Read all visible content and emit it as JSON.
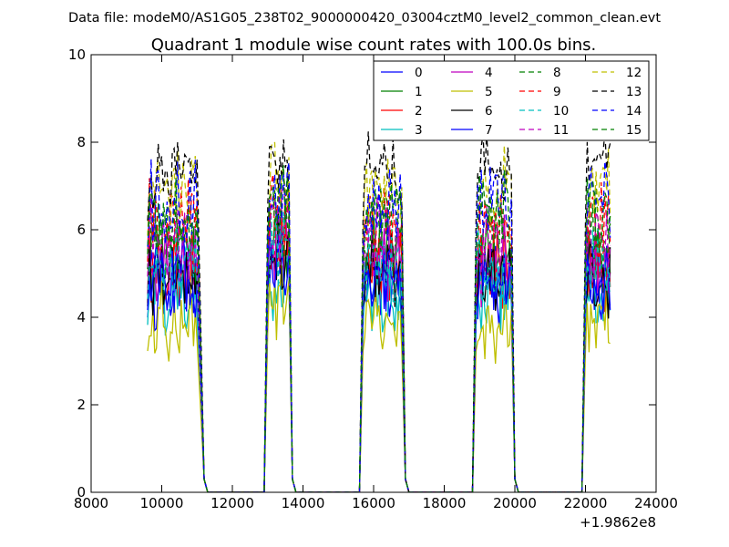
{
  "chart_data": {
    "type": "line",
    "header": "Data file: modeM0/AS1G05_238T02_9000000420_03004cztM0_level2_common_clean.evt",
    "title": "Quadrant 1 module wise count rates with 100.0s bins.",
    "xlabel": "",
    "ylabel": "",
    "offset_label": "+1.9862e8",
    "xlim": [
      8000,
      24000
    ],
    "ylim": [
      0,
      10
    ],
    "xticks": [
      "8000",
      "10000",
      "12000",
      "14000",
      "16000",
      "18000",
      "20000",
      "22000",
      "24000"
    ],
    "yticks": [
      "0",
      "2",
      "4",
      "6",
      "8",
      "10"
    ],
    "grid": false,
    "legend_position": "top-right",
    "segments": [
      {
        "start": 9600,
        "end": 11000,
        "edge_down": 11200
      },
      {
        "start": 13000,
        "end": 13600,
        "edge_up": 12900,
        "edge_down": 13700
      },
      {
        "start": 15700,
        "end": 16800,
        "edge_up": 15600,
        "edge_down": 16900
      },
      {
        "start": 18900,
        "end": 19900,
        "edge_up": 18800,
        "edge_down": 20000
      },
      {
        "start": 22000,
        "end": 22700,
        "edge_up": 21900
      }
    ],
    "series": [
      {
        "name": "0",
        "color": "#0000ff",
        "dash": false,
        "level": 4.7
      },
      {
        "name": "1",
        "color": "#008000",
        "dash": false,
        "level": 5.5
      },
      {
        "name": "2",
        "color": "#ff0000",
        "dash": false,
        "level": 5.1
      },
      {
        "name": "3",
        "color": "#00bfbf",
        "dash": false,
        "level": 4.5
      },
      {
        "name": "4",
        "color": "#bf00bf",
        "dash": false,
        "level": 5.3
      },
      {
        "name": "5",
        "color": "#bfbf00",
        "dash": false,
        "level": 3.8
      },
      {
        "name": "6",
        "color": "#000000",
        "dash": false,
        "level": 5.0
      },
      {
        "name": "7",
        "color": "#0000ff",
        "dash": false,
        "level": 4.9
      },
      {
        "name": "8",
        "color": "#008000",
        "dash": true,
        "level": 6.0
      },
      {
        "name": "9",
        "color": "#ff0000",
        "dash": true,
        "level": 6.2
      },
      {
        "name": "10",
        "color": "#00bfbf",
        "dash": true,
        "level": 5.2
      },
      {
        "name": "11",
        "color": "#bf00bf",
        "dash": true,
        "level": 5.8
      },
      {
        "name": "12",
        "color": "#bfbf00",
        "dash": true,
        "level": 6.9
      },
      {
        "name": "13",
        "color": "#000000",
        "dash": true,
        "level": 7.3
      },
      {
        "name": "14",
        "color": "#0000ff",
        "dash": true,
        "level": 6.6
      },
      {
        "name": "15",
        "color": "#008000",
        "dash": true,
        "level": 6.4
      }
    ]
  }
}
